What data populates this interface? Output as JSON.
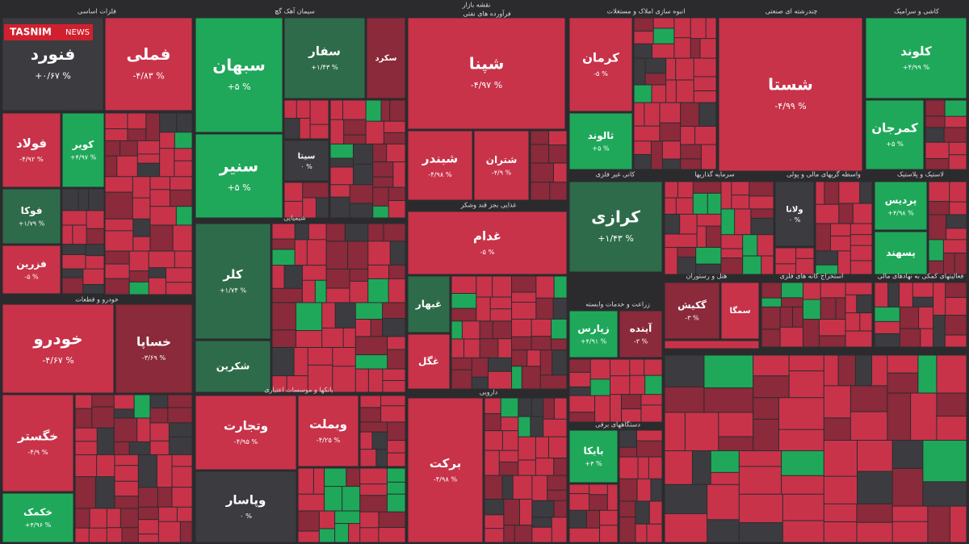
{
  "title": "نقشه بازار",
  "logo": {
    "brand": "TASNIM",
    "suffix": "NEWS"
  },
  "sectors": [
    {
      "name": "فلزات اساسی",
      "tiles": [
        {
          "name": "فنورد",
          "change": "+۰/۶۷ %"
        },
        {
          "name": "فملی",
          "change": "-۴/۸۳ %"
        },
        {
          "name": "فولاد",
          "change": "-۴/۹۲ %"
        },
        {
          "name": "کویر",
          "change": "+۴/۹۷ %"
        },
        {
          "name": "فوکا",
          "change": "+۱/۷۹ %"
        },
        {
          "name": "فزرین",
          "change": "-۵ %"
        }
      ]
    },
    {
      "name": "خودرو و قطعات",
      "tiles": [
        {
          "name": "خودرو",
          "change": "-۴/۶۷ %"
        },
        {
          "name": "خساپا",
          "change": "-۳/۶۹ %"
        },
        {
          "name": "خگستر",
          "change": "-۴/۹ %"
        },
        {
          "name": "خکمک",
          "change": "+۴/۹۶ %"
        }
      ]
    },
    {
      "name": "سیمان آهک گچ",
      "tiles": [
        {
          "name": "سبهان",
          "change": "+۵ %"
        },
        {
          "name": "سنیر",
          "change": "+۵ %"
        },
        {
          "name": "سفار",
          "change": "+۱/۴۳ %"
        },
        {
          "name": "سکرد"
        },
        {
          "name": "سیتا",
          "change": "۰ %"
        }
      ]
    },
    {
      "name": "شیمیایی",
      "tiles": [
        {
          "name": "کلر",
          "change": "+۱/۷۴ %"
        },
        {
          "name": "شکرین"
        }
      ]
    },
    {
      "name": "بانکها و موسسات اعتباری",
      "tiles": [
        {
          "name": "وتجارت",
          "change": "-۴/۹۵ %"
        },
        {
          "name": "وپاسار",
          "change": "۰ %"
        },
        {
          "name": "وبملت",
          "change": "-۴/۲۵ %"
        }
      ]
    },
    {
      "name": "فرآورده های نفتی",
      "tiles": [
        {
          "name": "شپنا",
          "change": "-۴/۹۷ %"
        },
        {
          "name": "شبندر",
          "change": "-۴/۹۸ %"
        },
        {
          "name": "شتران",
          "change": "-۴/۹ %"
        }
      ]
    },
    {
      "name": "غذایی بجز قند وشکر",
      "tiles": [
        {
          "name": "غدام",
          "change": "-۵ %"
        },
        {
          "name": "غبهار"
        },
        {
          "name": "غگل"
        }
      ]
    },
    {
      "name": "دارویی",
      "tiles": [
        {
          "name": "برکت",
          "change": "-۴/۹۸ %"
        }
      ]
    },
    {
      "name": "انبوه سازی املاک و مستغلات",
      "tiles": [
        {
          "name": "کرمان",
          "change": "-۵ %"
        },
        {
          "name": "ثالوند",
          "change": "+۵ %"
        }
      ]
    },
    {
      "name": "کانی غیر فلزی",
      "tiles": [
        {
          "name": "کرازی",
          "change": "+۱/۴۳ %"
        }
      ]
    },
    {
      "name": "زراعت و خدمات وابسته",
      "tiles": [
        {
          "name": "زپارس",
          "change": "+۴/۹۱ %"
        },
        {
          "name": "آینده",
          "change": "-۳ %"
        }
      ]
    },
    {
      "name": "دستگاههای برقی",
      "tiles": [
        {
          "name": "بایکا",
          "change": "+۴ %"
        }
      ]
    },
    {
      "name": "چندرشته ای صنعتی",
      "tiles": [
        {
          "name": "شستا",
          "change": "-۴/۹۹ %"
        }
      ]
    },
    {
      "name": "کاشی و سرامیک",
      "tiles": [
        {
          "name": "کلوند",
          "change": "+۴/۹۹ %"
        },
        {
          "name": "کمرجان",
          "change": "+۵ %"
        }
      ]
    },
    {
      "name": "سرمایه گذاریها",
      "tiles": []
    },
    {
      "name": "واسطه گریهای مالی و پولی",
      "tiles": [
        {
          "name": "ولانا",
          "change": "۰ %"
        }
      ]
    },
    {
      "name": "لاستیک و پلاستیک",
      "tiles": [
        {
          "name": "پردیس",
          "change": "+۴/۹۸ %"
        },
        {
          "name": "پسهند"
        }
      ]
    },
    {
      "name": "هتل و رستوران",
      "tiles": [
        {
          "name": "گکیش",
          "change": "-۳ %"
        },
        {
          "name": "سمگا"
        }
      ]
    },
    {
      "name": "استخراج کانه های فلزی",
      "tiles": []
    },
    {
      "name": "فعالیتهای کمکی به نهادهای مالی",
      "tiles": []
    }
  ]
}
